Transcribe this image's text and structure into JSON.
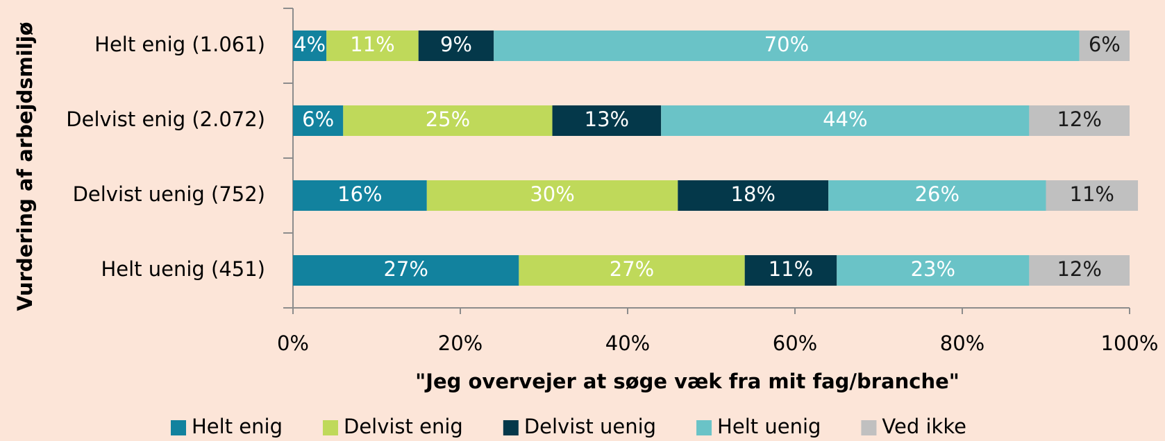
{
  "chart_data": {
    "type": "stacked_barh",
    "x_label": "\"Jeg overvejer at søge væk fra mit fag/branche\"",
    "y_label": "Vurdering af arbejdsmiljø",
    "categories": [
      "Helt enig (1.061)",
      "Delvist enig (2.072)",
      "Delvist uenig (752)",
      "Helt uenig (451)"
    ],
    "series": [
      {
        "name": "Helt enig",
        "color": "#12829e",
        "label_color": "#ffffff",
        "values": [
          4,
          6,
          16,
          27
        ],
        "value_labels": [
          "4%",
          "6%",
          "16%",
          "27%"
        ]
      },
      {
        "name": "Delvist enig",
        "color": "#bfd95a",
        "label_color": "#ffffff",
        "values": [
          11,
          25,
          30,
          27
        ],
        "value_labels": [
          "11%",
          "25%",
          "30%",
          "27%"
        ]
      },
      {
        "name": "Delvist uenig",
        "color": "#04384a",
        "label_color": "#ffffff",
        "values": [
          9,
          13,
          18,
          11
        ],
        "value_labels": [
          "9%",
          "13%",
          "18%",
          "11%"
        ]
      },
      {
        "name": "Helt uenig",
        "color": "#6ac3c7",
        "label_color": "#ffffff",
        "values": [
          70,
          44,
          26,
          23
        ],
        "value_labels": [
          "70%",
          "44%",
          "26%",
          "23%"
        ]
      },
      {
        "name": "Ved ikke",
        "color": "#c0c0c0",
        "label_color": "#1a1a1a",
        "values": [
          6,
          12,
          11,
          12
        ],
        "value_labels": [
          "6%",
          "12%",
          "11%",
          "12%"
        ]
      }
    ],
    "xlim": [
      0,
      100
    ],
    "xticks": [
      {
        "value": 0,
        "label": "0%"
      },
      {
        "value": 20,
        "label": "20%"
      },
      {
        "value": 40,
        "label": "40%"
      },
      {
        "value": 60,
        "label": "60%"
      },
      {
        "value": 80,
        "label": "80%"
      },
      {
        "value": 100,
        "label": "100%"
      }
    ],
    "legend": "bottom"
  }
}
